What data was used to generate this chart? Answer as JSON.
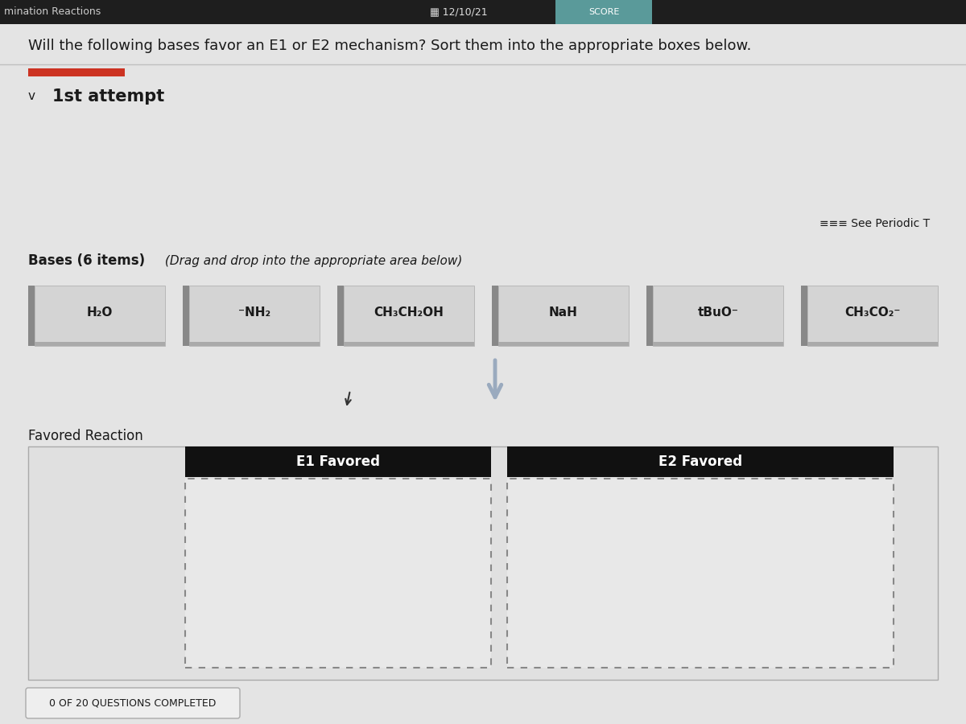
{
  "title_question": "Will the following bases favor an E1 or E2 mechanism? Sort them into the appropriate boxes below.",
  "attempt_label": "1st attempt",
  "see_periodic_label": "≡≡≡ See Periodic T",
  "bases_header": "Bases (6 items)",
  "bases_subheader": "(Drag and drop into the appropriate area below)",
  "bases": [
    "H₂O",
    "⁻NH₂",
    "CH₃CH₂OH",
    "NaH",
    "tBuO⁻",
    "CH₃CO₂⁻"
  ],
  "favored_label": "Favored Reaction",
  "e1_label": "E1 Favored",
  "e2_label": "E2 Favored",
  "progress_label": "0 OF 20 QUESTIONS COMPLETED",
  "bg_color": "#d8d8d8",
  "page_bg": "#e8e8e8",
  "box_bg": "#d4d4d4",
  "box_border": "#999999",
  "black_header": "#111111",
  "white_text": "#ffffff",
  "dark_text": "#1a1a1a",
  "red_rect": "#cc3322",
  "arrow_color": "#9aaabe",
  "header_bg": "#1e1e1e",
  "teal_score": "#5a9a9a",
  "drop_zone_bg": "#e8e8e8",
  "outer_box_bg": "#e0e0e0"
}
